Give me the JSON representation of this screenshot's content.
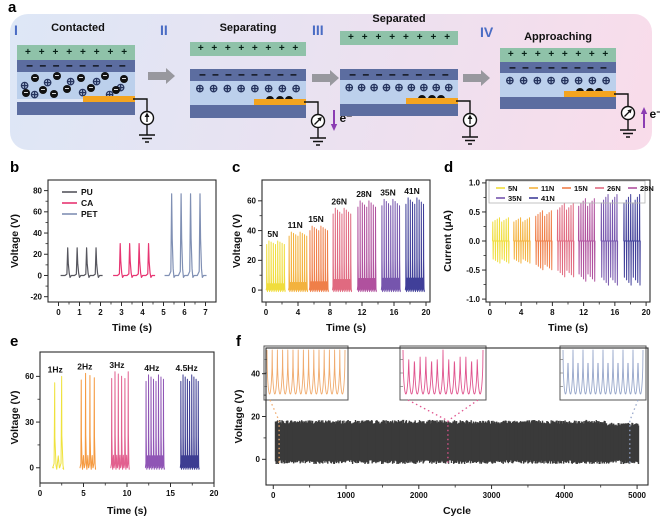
{
  "labels": {
    "a": "a",
    "b": "b",
    "c": "c",
    "d": "d",
    "e": "e",
    "f": "f"
  },
  "panel_a": {
    "colors": {
      "top_layer": "#8fc2a9",
      "film": "#5c6da0",
      "dielectric": "#bcd0ec",
      "substrate": "#5c6da0",
      "electrode": "#f4a41f",
      "numeral": "#4a6cc4",
      "arrow": "#98989e",
      "electron_text": "#8b3db3"
    },
    "plus_symbol": "+",
    "minus_symbol": "–",
    "pos_ion_symbol": "⊕",
    "electron_symbol": "–",
    "stages": [
      {
        "numeral": "I",
        "title": "Contacted",
        "mode": "contacted"
      },
      {
        "numeral": "II",
        "title": "Separating",
        "mode": "separating",
        "electron": "down",
        "electron_label": "e⁻"
      },
      {
        "numeral": "III",
        "title": "Separated",
        "mode": "separated"
      },
      {
        "numeral": "IV",
        "title": "Approaching",
        "mode": "approaching",
        "electron": "up",
        "electron_label": "e⁻"
      }
    ]
  },
  "chart_data": [
    {
      "panel": "b",
      "type": "line",
      "kind": "spikes",
      "xlabel": "Time (s)",
      "ylabel": "Voltage (V)",
      "xlim": [
        -0.5,
        7.5
      ],
      "ylim": [
        -25,
        90
      ],
      "xticks": [
        0,
        1,
        2,
        3,
        4,
        5,
        6,
        7
      ],
      "yticks": [
        -20,
        0,
        20,
        40,
        60,
        80
      ],
      "legend": {
        "position": "top-left",
        "items": [
          {
            "label": "PU",
            "color": "#56565e"
          },
          {
            "label": "CA",
            "color": "#e73572"
          },
          {
            "label": "PET",
            "color": "#8090b4"
          }
        ]
      },
      "series": [
        {
          "name": "PU",
          "color": "#56565e",
          "peak": 26,
          "times": [
            0.45,
            0.9,
            1.35,
            1.8
          ]
        },
        {
          "name": "CA",
          "color": "#e73572",
          "peak": 30,
          "times": [
            2.95,
            3.4,
            3.85,
            4.3
          ]
        },
        {
          "name": "PET",
          "color": "#8090b4",
          "peak": 77,
          "times": [
            5.4,
            5.85,
            6.3,
            6.75
          ]
        }
      ]
    },
    {
      "panel": "c",
      "type": "line",
      "kind": "spike-groups",
      "xlabel": "Time (s)",
      "ylabel": "Voltage (V)",
      "xlim": [
        -0.5,
        20.5
      ],
      "ylim": [
        -8,
        74
      ],
      "xticks": [
        0,
        4,
        8,
        12,
        16,
        20
      ],
      "yticks": [
        0,
        20,
        40,
        60
      ],
      "groups": [
        {
          "label": "5N",
          "color": "#f0dd3c",
          "center": 1.2,
          "peak": 33,
          "n": 9,
          "span": 2.2
        },
        {
          "label": "11N",
          "color": "#f3b23e",
          "center": 4.0,
          "peak": 39,
          "n": 9,
          "span": 2.2
        },
        {
          "label": "15N",
          "color": "#ef7f49",
          "center": 6.6,
          "peak": 43,
          "n": 9,
          "span": 2.2
        },
        {
          "label": "26N",
          "color": "#e06a80",
          "center": 9.5,
          "peak": 55,
          "n": 9,
          "span": 2.2
        },
        {
          "label": "28N",
          "color": "#b0519e",
          "center": 12.6,
          "peak": 60,
          "n": 9,
          "span": 2.2
        },
        {
          "label": "35N",
          "color": "#7655ad",
          "center": 15.6,
          "peak": 61,
          "n": 9,
          "span": 2.2
        },
        {
          "label": "41N",
          "color": "#403f99",
          "center": 18.6,
          "peak": 62,
          "n": 9,
          "span": 2.2
        }
      ]
    },
    {
      "panel": "d",
      "type": "line",
      "kind": "bipolar-groups",
      "xlabel": "Time (s)",
      "ylabel": "Current (μA)",
      "xlim": [
        -0.5,
        20.5
      ],
      "ylim": [
        -1.05,
        1.05
      ],
      "xticks": [
        0,
        4,
        8,
        12,
        16,
        20
      ],
      "yticks": [
        -1,
        -0.5,
        0,
        0.5,
        1
      ],
      "ytick_labels": [
        "-1.0",
        "-0.5",
        "0.0",
        "0.5",
        "1.0"
      ],
      "legend_rows": [
        [
          "5N",
          "11N",
          "15N",
          "26N",
          "28N"
        ],
        [
          "35N",
          "41N"
        ]
      ],
      "groups": [
        {
          "label": "5N",
          "color": "#f0dd3c",
          "center": 1.4,
          "amp": 0.4,
          "n": 8,
          "span": 2.0
        },
        {
          "label": "11N",
          "color": "#f3b23e",
          "center": 4.1,
          "amp": 0.4,
          "n": 8,
          "span": 2.0
        },
        {
          "label": "15N",
          "color": "#ef7f49",
          "center": 6.9,
          "amp": 0.52,
          "n": 8,
          "span": 2.0
        },
        {
          "label": "26N",
          "color": "#e06a80",
          "center": 9.7,
          "amp": 0.65,
          "n": 8,
          "span": 2.0
        },
        {
          "label": "28N",
          "color": "#b0519e",
          "center": 12.4,
          "amp": 0.73,
          "n": 8,
          "span": 2.0
        },
        {
          "label": "35N",
          "color": "#7655ad",
          "center": 15.3,
          "amp": 0.8,
          "n": 8,
          "span": 2.0
        },
        {
          "label": "41N",
          "color": "#403f99",
          "center": 18.2,
          "amp": 0.8,
          "n": 8,
          "span": 2.0
        }
      ]
    },
    {
      "panel": "e",
      "type": "line",
      "kind": "spike-groups",
      "xlabel": "Time (s)",
      "ylabel": "Voltage (V)",
      "xlim": [
        0,
        20
      ],
      "ylim": [
        -10,
        76
      ],
      "xticks": [
        0,
        5,
        10,
        15,
        20
      ],
      "yticks": [
        0,
        30,
        60
      ],
      "groups": [
        {
          "label": "1Hz",
          "color": "#efe23c",
          "center": 2.1,
          "peak": 60,
          "n": 2,
          "span": 0.8
        },
        {
          "label": "2Hz",
          "color": "#f59a40",
          "center": 5.5,
          "peak": 62,
          "n": 4,
          "span": 1.5
        },
        {
          "label": "3Hz",
          "color": "#e2608f",
          "center": 9.2,
          "peak": 63,
          "n": 6,
          "span": 1.9
        },
        {
          "label": "4Hz",
          "color": "#8f55b5",
          "center": 13.2,
          "peak": 61,
          "n": 8,
          "span": 2.0
        },
        {
          "label": "4.5Hz",
          "color": "#3d3d92",
          "center": 17.2,
          "peak": 61,
          "n": 9,
          "span": 2.0
        }
      ]
    },
    {
      "panel": "f",
      "type": "line",
      "kind": "durability",
      "xlabel": "Cycle",
      "ylabel": "Voltage (V)",
      "xlim": [
        -100,
        5150
      ],
      "ylim": [
        -12,
        52
      ],
      "xticks": [
        0,
        1000,
        2000,
        3000,
        4000,
        5000
      ],
      "yticks": [
        0,
        20,
        40
      ],
      "band": {
        "color": "#3a3a3a",
        "top": 18,
        "bottom": -2,
        "x_start": 30,
        "x_end": 5020,
        "late_drop_x": 4580,
        "late_top": 16.3
      },
      "insets": [
        {
          "color": "#f0ab6e",
          "cycle": 80,
          "connect": "left",
          "cycles_shown": 15
        },
        {
          "color": "#e0548e",
          "cycle": 2400,
          "connect": "both",
          "cycles_shown": 14
        },
        {
          "color": "#97a7cb",
          "cycle": 4900,
          "connect": "right",
          "cycles_shown": 16
        }
      ]
    }
  ]
}
